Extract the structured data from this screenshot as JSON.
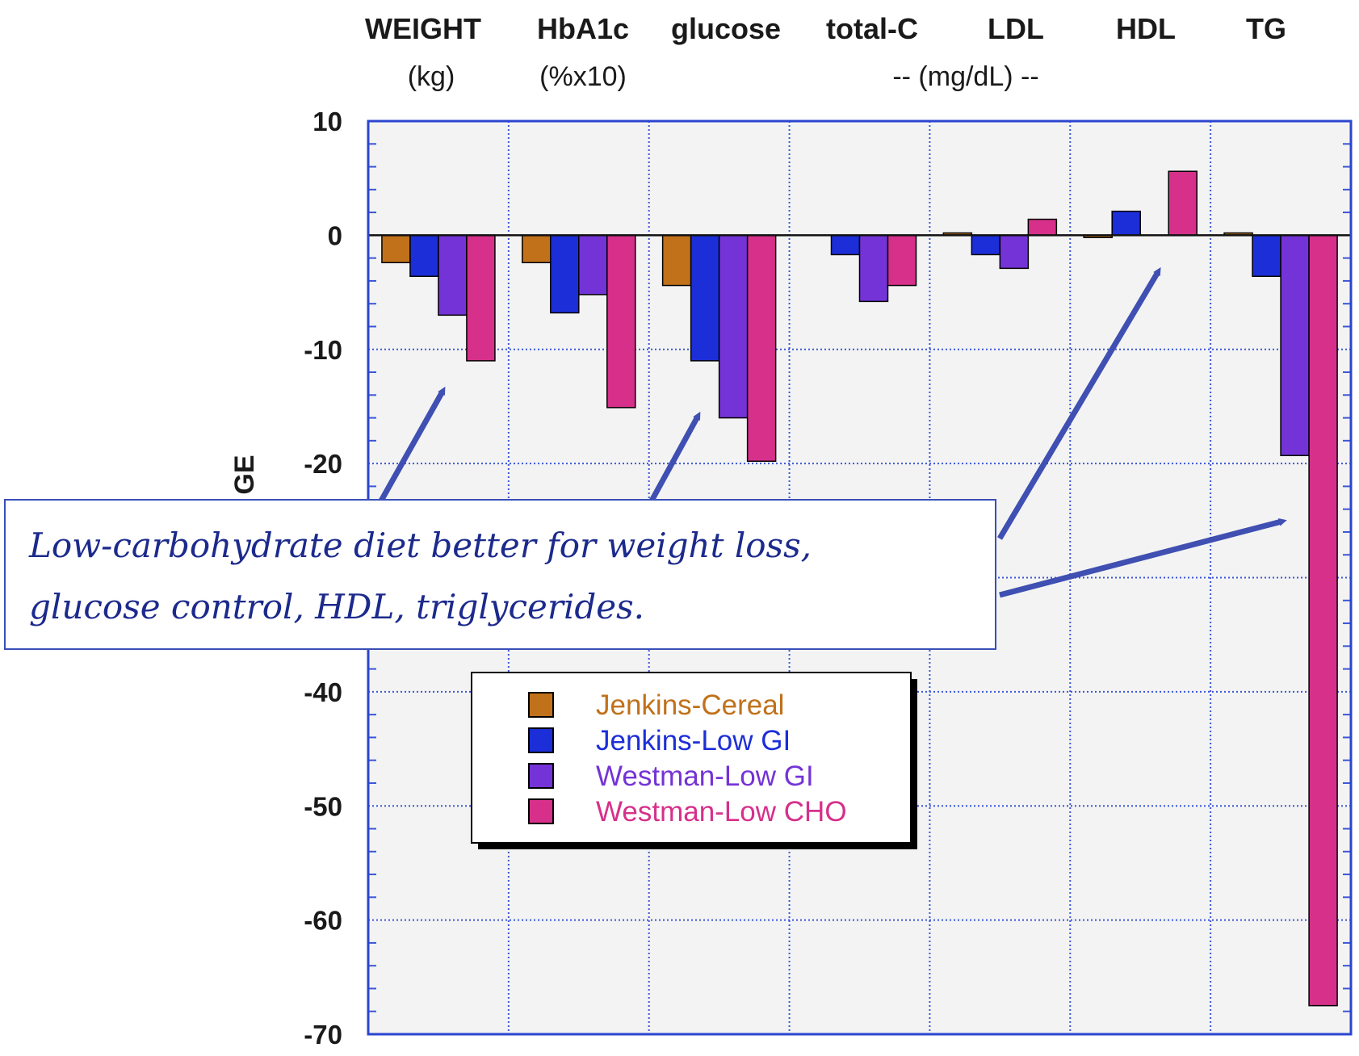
{
  "chart_data": {
    "type": "bar",
    "categories": [
      "WEIGHT",
      "HbA1c",
      "glucose",
      "total-C",
      "LDL",
      "HDL",
      "TG"
    ],
    "category_units": [
      "(kg)",
      "(%x10)",
      "",
      "",
      "",
      "",
      ""
    ],
    "shared_unit_label": "-- (mg/dL) --",
    "ylabel_fragment": "GE",
    "ylim": [
      -70,
      10
    ],
    "yticks": [
      10,
      0,
      -10,
      -20,
      -30,
      -40,
      -50,
      -60,
      -70
    ],
    "ytick_labels": [
      "10",
      "0",
      "-10",
      "-20",
      "",
      "-40",
      "-50",
      "-60",
      "-70"
    ],
    "grid": true,
    "legend_position": "lower-center",
    "series": [
      {
        "name": "Jenkins-Cereal",
        "color": "#c0711a",
        "values": [
          -2.4,
          -2.4,
          -4.4,
          null,
          0.2,
          -0.2,
          0.2
        ]
      },
      {
        "name": "Jenkins-Low GI",
        "color": "#1c2ed8",
        "values": [
          -3.6,
          -6.8,
          -11.0,
          -1.7,
          -1.7,
          2.1,
          -3.6
        ]
      },
      {
        "name": "Westman-Low GI",
        "color": "#7433d6",
        "values": [
          -7.0,
          -5.2,
          -16.0,
          -5.8,
          -2.9,
          null,
          -19.3
        ]
      },
      {
        "name": "Westman-Low CHO",
        "color": "#d6308a",
        "values": [
          -11.0,
          -15.1,
          -19.8,
          -4.4,
          1.4,
          5.6,
          -67.5
        ]
      }
    ]
  },
  "annotation": {
    "line1": "Low-carbohydrate diet better for weight loss,",
    "line2": "glucose control, HDL, triglycerides."
  },
  "colors": {
    "plot_border": "#2b45d0",
    "grid": "#3a56d8",
    "arrow": "#3f4fb2",
    "annotation_border": "#3a4fb8"
  }
}
